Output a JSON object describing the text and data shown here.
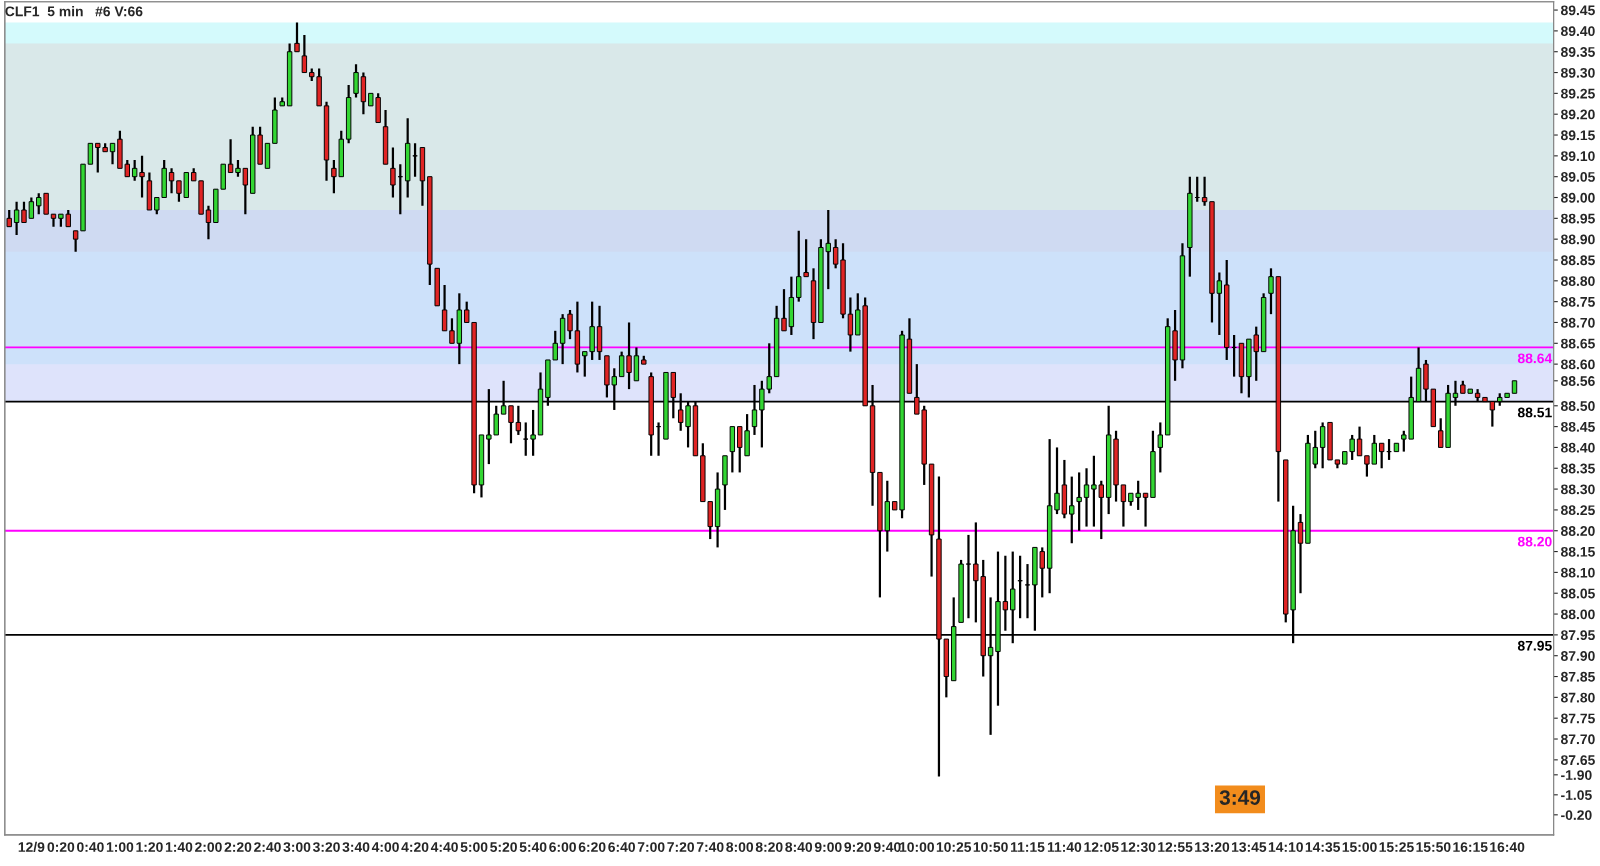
{
  "chart_data": {
    "type": "candlestick",
    "title": "CLF1  5 min   #6 V:66",
    "categories": [
      null,
      null,
      null,
      "12/9",
      null,
      null,
      null,
      "0:20",
      null,
      null,
      null,
      "0:40",
      null,
      null,
      null,
      "1:00",
      null,
      null,
      null,
      "1:20",
      null,
      null,
      null,
      "1:40",
      null,
      null,
      null,
      "2:00",
      null,
      null,
      null,
      "2:20",
      null,
      null,
      null,
      "2:40",
      null,
      null,
      null,
      "3:00",
      null,
      null,
      null,
      "3:20",
      null,
      null,
      null,
      "3:40",
      null,
      null,
      null,
      "4:00",
      null,
      null,
      null,
      "4:20",
      null,
      null,
      null,
      "4:40",
      null,
      null,
      null,
      "5:00",
      null,
      null,
      null,
      "5:20",
      null,
      null,
      null,
      "5:40",
      null,
      null,
      null,
      "6:00",
      null,
      null,
      null,
      "6:20",
      null,
      null,
      null,
      "6:40",
      null,
      null,
      null,
      "7:00",
      null,
      null,
      null,
      "7:20",
      null,
      null,
      null,
      "7:40",
      null,
      null,
      null,
      "8:00",
      null,
      null,
      null,
      "8:20",
      null,
      null,
      null,
      "8:40",
      null,
      null,
      null,
      "9:00",
      null,
      null,
      null,
      "9:20",
      null,
      null,
      null,
      "9:40",
      null,
      null,
      null,
      "10:00",
      null,
      null,
      null,
      null,
      "10:25",
      null,
      null,
      null,
      null,
      "10:50",
      null,
      null,
      null,
      null,
      "11:15",
      null,
      null,
      null,
      null,
      "11:40",
      null,
      null,
      null,
      null,
      "12:05",
      null,
      null,
      null,
      null,
      "12:30",
      null,
      null,
      null,
      null,
      "12:55",
      null,
      null,
      null,
      null,
      "13:20",
      null,
      null,
      null,
      null,
      "13:45",
      null,
      null,
      null,
      null,
      "14:10",
      null,
      null,
      null,
      null,
      "14:35",
      null,
      null,
      null,
      null,
      "15:00",
      null,
      null,
      null,
      null,
      "15:25",
      null,
      null,
      null,
      null,
      "15:50",
      null,
      null,
      null,
      null,
      "16:15",
      null,
      null,
      null,
      null,
      "16:40",
      null
    ],
    "ohlc": [
      [
        88.95,
        88.97,
        88.93,
        88.93
      ],
      [
        88.94,
        88.99,
        88.91,
        88.97
      ],
      [
        88.97,
        88.99,
        88.94,
        88.94
      ],
      [
        88.95,
        89.0,
        88.95,
        88.99
      ],
      [
        88.98,
        89.01,
        88.96,
        89.0
      ],
      [
        89.01,
        89.01,
        88.96,
        88.96
      ],
      [
        88.96,
        88.96,
        88.93,
        88.95
      ],
      [
        88.95,
        88.96,
        88.93,
        88.96
      ],
      [
        88.96,
        88.97,
        88.93,
        88.93
      ],
      [
        88.92,
        88.92,
        88.87,
        88.9
      ],
      [
        88.92,
        89.08,
        88.92,
        89.08
      ],
      [
        89.08,
        89.13,
        89.08,
        89.13
      ],
      [
        89.13,
        89.13,
        89.06,
        89.12
      ],
      [
        89.12,
        89.13,
        89.11,
        89.11
      ],
      [
        89.11,
        89.13,
        89.08,
        89.13
      ],
      [
        89.14,
        89.16,
        89.07,
        89.07
      ],
      [
        89.08,
        89.09,
        89.05,
        89.05
      ],
      [
        89.05,
        89.09,
        89.04,
        89.07
      ],
      [
        89.06,
        89.1,
        89.0,
        89.05
      ],
      [
        89.04,
        89.06,
        88.97,
        88.97
      ],
      [
        88.97,
        89.0,
        88.96,
        89.0
      ],
      [
        89.0,
        89.09,
        89.0,
        89.07
      ],
      [
        89.06,
        89.07,
        89.01,
        89.04
      ],
      [
        89.04,
        89.04,
        88.99,
        89.01
      ],
      [
        89.0,
        89.06,
        89.0,
        89.06
      ],
      [
        89.06,
        89.07,
        89.04,
        89.04
      ],
      [
        89.04,
        89.04,
        88.96,
        88.96
      ],
      [
        88.97,
        88.98,
        88.9,
        88.94
      ],
      [
        88.94,
        89.02,
        88.94,
        89.02
      ],
      [
        89.02,
        89.08,
        89.02,
        89.08
      ],
      [
        89.08,
        89.14,
        89.06,
        89.06
      ],
      [
        89.06,
        89.09,
        89.05,
        89.07
      ],
      [
        89.07,
        89.07,
        88.96,
        89.03
      ],
      [
        89.01,
        89.17,
        89.01,
        89.15
      ],
      [
        89.15,
        89.17,
        89.08,
        89.08
      ],
      [
        89.07,
        89.13,
        89.07,
        89.13
      ],
      [
        89.13,
        89.24,
        89.13,
        89.21
      ],
      [
        89.22,
        89.24,
        89.22,
        89.23
      ],
      [
        89.22,
        89.37,
        89.22,
        89.35
      ],
      [
        89.37,
        89.42,
        89.35,
        89.35
      ],
      [
        89.34,
        89.39,
        89.3,
        89.3
      ],
      [
        89.3,
        89.31,
        89.28,
        89.29
      ],
      [
        89.29,
        89.31,
        89.22,
        89.22
      ],
      [
        89.22,
        89.23,
        89.04,
        89.09
      ],
      [
        89.07,
        89.09,
        89.01,
        89.05
      ],
      [
        89.05,
        89.16,
        89.05,
        89.14
      ],
      [
        89.14,
        89.27,
        89.13,
        89.24
      ],
      [
        89.25,
        89.32,
        89.24,
        89.3
      ],
      [
        89.29,
        89.3,
        89.2,
        89.23
      ],
      [
        89.22,
        89.25,
        89.22,
        89.25
      ],
      [
        89.24,
        89.25,
        89.18,
        89.18
      ],
      [
        89.17,
        89.21,
        89.08,
        89.08
      ],
      [
        89.07,
        89.12,
        89.0,
        89.03
      ],
      [
        89.05,
        89.08,
        88.96,
        89.05
      ],
      [
        89.04,
        89.19,
        89.0,
        89.13
      ],
      [
        89.1,
        89.13,
        89.05,
        89.1
      ],
      [
        89.12,
        89.12,
        88.98,
        89.04
      ],
      [
        89.05,
        89.05,
        88.79,
        88.84
      ],
      [
        88.83,
        88.83,
        88.74,
        88.74
      ],
      [
        88.73,
        88.79,
        88.68,
        88.68
      ],
      [
        88.68,
        88.71,
        88.65,
        88.65
      ],
      [
        88.65,
        88.77,
        88.6,
        88.73
      ],
      [
        88.73,
        88.75,
        88.7,
        88.7
      ],
      [
        88.7,
        88.7,
        88.29,
        88.31
      ],
      [
        88.31,
        88.43,
        88.28,
        88.43
      ],
      [
        88.42,
        88.54,
        88.36,
        88.43
      ],
      [
        88.43,
        88.5,
        88.43,
        88.48
      ],
      [
        88.48,
        88.56,
        88.48,
        88.5
      ],
      [
        88.5,
        88.5,
        88.41,
        88.46
      ],
      [
        88.46,
        88.5,
        88.43,
        88.44
      ],
      [
        88.42,
        88.46,
        88.38,
        88.42
      ],
      [
        88.42,
        88.49,
        88.38,
        88.43
      ],
      [
        88.43,
        88.58,
        88.43,
        88.54
      ],
      [
        88.52,
        88.61,
        88.5,
        88.61
      ],
      [
        88.61,
        88.68,
        88.61,
        88.65
      ],
      [
        88.65,
        88.72,
        88.6,
        88.71
      ],
      [
        88.72,
        88.73,
        88.66,
        88.68
      ],
      [
        88.68,
        88.75,
        88.58,
        88.6
      ],
      [
        88.62,
        88.63,
        88.57,
        88.63
      ],
      [
        88.63,
        88.75,
        88.61,
        88.69
      ],
      [
        88.69,
        88.74,
        88.61,
        88.63
      ],
      [
        88.62,
        88.62,
        88.52,
        88.55
      ],
      [
        88.55,
        88.59,
        88.49,
        88.57
      ],
      [
        88.57,
        88.63,
        88.57,
        88.62
      ],
      [
        88.62,
        88.7,
        88.54,
        88.58
      ],
      [
        88.56,
        88.64,
        88.56,
        88.62
      ],
      [
        88.61,
        88.62,
        88.6,
        88.6
      ],
      [
        88.57,
        88.58,
        88.38,
        88.43
      ],
      [
        88.45,
        88.46,
        88.38,
        88.45
      ],
      [
        88.42,
        88.58,
        88.42,
        88.58
      ],
      [
        88.58,
        88.58,
        88.47,
        88.52
      ],
      [
        88.49,
        88.53,
        88.44,
        88.46
      ],
      [
        88.45,
        88.51,
        88.4,
        88.5
      ],
      [
        88.5,
        88.51,
        88.38,
        88.38
      ],
      [
        88.38,
        88.41,
        88.27,
        88.27
      ],
      [
        88.27,
        88.27,
        88.18,
        88.21
      ],
      [
        88.21,
        88.34,
        88.16,
        88.3
      ],
      [
        88.31,
        88.38,
        88.25,
        88.38
      ],
      [
        88.39,
        88.45,
        88.34,
        88.45
      ],
      [
        88.45,
        88.45,
        88.34,
        88.4
      ],
      [
        88.38,
        88.48,
        88.38,
        88.44
      ],
      [
        88.45,
        88.55,
        88.43,
        88.49
      ],
      [
        88.49,
        88.56,
        88.4,
        88.54
      ],
      [
        88.54,
        88.65,
        88.53,
        88.57
      ],
      [
        88.57,
        88.74,
        88.57,
        88.71
      ],
      [
        88.71,
        88.78,
        88.68,
        88.68
      ],
      [
        88.69,
        88.81,
        88.67,
        88.76
      ],
      [
        88.76,
        88.92,
        88.75,
        88.81
      ],
      [
        88.82,
        88.9,
        88.81,
        88.81
      ],
      [
        88.8,
        88.83,
        88.66,
        88.7
      ],
      [
        88.7,
        88.9,
        88.7,
        88.88
      ],
      [
        88.87,
        88.97,
        88.78,
        88.89
      ],
      [
        88.88,
        88.9,
        88.83,
        88.84
      ],
      [
        88.85,
        88.89,
        88.71,
        88.72
      ],
      [
        88.72,
        88.76,
        88.63,
        88.67
      ],
      [
        88.67,
        88.77,
        88.67,
        88.73
      ],
      [
        88.74,
        88.76,
        88.5,
        88.5
      ],
      [
        88.5,
        88.55,
        88.26,
        88.34
      ],
      [
        88.34,
        88.34,
        88.04,
        88.2
      ],
      [
        88.2,
        88.32,
        88.15,
        88.27
      ],
      [
        88.27,
        88.27,
        88.25,
        88.25
      ],
      [
        88.25,
        88.68,
        88.23,
        88.67
      ],
      [
        88.66,
        88.71,
        88.53,
        88.53
      ],
      [
        88.52,
        88.6,
        88.48,
        88.48
      ],
      [
        88.49,
        88.5,
        88.31,
        88.36
      ],
      [
        88.36,
        88.36,
        88.09,
        88.19
      ],
      [
        88.18,
        88.33,
        87.61,
        87.94
      ],
      [
        87.94,
        87.94,
        87.8,
        87.85
      ],
      [
        87.84,
        88.04,
        87.84,
        87.97
      ],
      [
        87.98,
        88.13,
        87.98,
        88.12
      ],
      [
        88.12,
        88.19,
        87.99,
        88.12
      ],
      [
        88.12,
        88.22,
        87.98,
        88.08
      ],
      [
        88.09,
        88.13,
        87.85,
        87.9
      ],
      [
        87.9,
        88.04,
        87.71,
        87.92
      ],
      [
        87.91,
        88.15,
        87.78,
        88.03
      ],
      [
        88.03,
        88.14,
        87.96,
        88.01
      ],
      [
        88.01,
        88.15,
        87.93,
        88.06
      ],
      [
        88.08,
        88.14,
        87.99,
        88.08
      ],
      [
        88.07,
        88.12,
        87.99,
        88.07
      ],
      [
        88.07,
        88.16,
        87.96,
        88.16
      ],
      [
        88.15,
        88.16,
        88.04,
        88.11
      ],
      [
        88.11,
        88.42,
        88.05,
        88.26
      ],
      [
        88.25,
        88.4,
        88.24,
        88.29
      ],
      [
        88.31,
        88.37,
        88.23,
        88.24
      ],
      [
        88.24,
        88.33,
        88.17,
        88.26
      ],
      [
        88.27,
        88.34,
        88.2,
        88.28
      ],
      [
        88.28,
        88.35,
        88.21,
        88.31
      ],
      [
        88.3,
        88.38,
        88.21,
        88.31
      ],
      [
        88.31,
        88.32,
        88.18,
        88.28
      ],
      [
        88.28,
        88.5,
        88.24,
        88.43
      ],
      [
        88.42,
        88.44,
        88.27,
        88.31
      ],
      [
        88.31,
        88.31,
        88.21,
        88.27
      ],
      [
        88.27,
        88.29,
        88.26,
        88.29
      ],
      [
        88.28,
        88.32,
        88.25,
        88.29
      ],
      [
        88.29,
        88.29,
        88.21,
        88.28
      ],
      [
        88.28,
        88.44,
        88.28,
        88.39
      ],
      [
        88.4,
        88.46,
        88.34,
        88.43
      ],
      [
        88.43,
        88.71,
        88.43,
        88.69
      ],
      [
        88.68,
        88.73,
        88.56,
        88.61
      ],
      [
        88.61,
        88.89,
        88.59,
        88.86
      ],
      [
        88.88,
        89.05,
        88.81,
        89.01
      ],
      [
        89.0,
        89.05,
        88.99,
        89.0
      ],
      [
        89.0,
        89.05,
        88.98,
        88.99
      ],
      [
        88.99,
        88.99,
        88.7,
        88.77
      ],
      [
        88.77,
        88.82,
        88.67,
        88.8
      ],
      [
        88.79,
        88.85,
        88.61,
        88.64
      ],
      [
        88.64,
        88.67,
        88.57,
        88.64
      ],
      [
        88.65,
        88.65,
        88.53,
        88.57
      ],
      [
        88.57,
        88.66,
        88.52,
        88.66
      ],
      [
        88.67,
        88.69,
        88.56,
        88.63
      ],
      [
        88.63,
        88.77,
        88.63,
        88.76
      ],
      [
        88.77,
        88.83,
        88.72,
        88.81
      ],
      [
        88.81,
        88.81,
        88.27,
        88.39
      ],
      [
        88.37,
        88.37,
        87.98,
        88.0
      ],
      [
        88.01,
        88.26,
        87.93,
        88.2
      ],
      [
        88.22,
        88.24,
        88.05,
        88.17
      ],
      [
        88.17,
        88.43,
        88.17,
        88.41
      ],
      [
        88.36,
        88.44,
        88.35,
        88.4
      ],
      [
        88.4,
        88.46,
        88.35,
        88.45
      ],
      [
        88.46,
        88.46,
        88.37,
        88.37
      ],
      [
        88.37,
        88.37,
        88.35,
        88.36
      ],
      [
        88.36,
        88.39,
        88.36,
        88.39
      ],
      [
        88.39,
        88.43,
        88.37,
        88.42
      ],
      [
        88.42,
        88.45,
        88.38,
        88.38
      ],
      [
        88.38,
        88.38,
        88.33,
        88.36
      ],
      [
        88.36,
        88.43,
        88.36,
        88.41
      ],
      [
        88.41,
        88.41,
        88.35,
        88.39
      ],
      [
        88.39,
        88.42,
        88.37,
        88.39
      ],
      [
        88.39,
        88.41,
        88.39,
        88.41
      ],
      [
        88.42,
        88.44,
        88.39,
        88.43
      ],
      [
        88.42,
        88.57,
        88.42,
        88.52
      ],
      [
        88.51,
        88.64,
        88.51,
        88.59
      ],
      [
        88.6,
        88.61,
        88.51,
        88.54
      ],
      [
        88.54,
        88.54,
        88.45,
        88.45
      ],
      [
        88.44,
        88.47,
        88.4,
        88.4
      ],
      [
        88.4,
        88.55,
        88.4,
        88.53
      ],
      [
        88.52,
        88.56,
        88.5,
        88.53
      ],
      [
        88.55,
        88.56,
        88.53,
        88.53
      ],
      [
        88.53,
        88.54,
        88.53,
        88.54
      ],
      [
        88.53,
        88.54,
        88.51,
        88.52
      ],
      [
        88.52,
        88.52,
        88.51,
        88.51
      ],
      [
        88.51,
        88.51,
        88.45,
        88.49
      ],
      [
        88.51,
        88.53,
        88.5,
        88.52
      ],
      [
        88.52,
        88.53,
        88.52,
        88.53
      ],
      [
        88.53,
        88.56,
        88.53,
        88.56
      ]
    ],
    "ylim": [
      87.47,
      89.47
    ],
    "yticks": [
      87.65,
      {
        "value": 87.7,
        "label": "87.70"
      },
      87.75,
      {
        "value": 87.8,
        "label": "87.80"
      },
      87.85,
      {
        "value": 87.9,
        "label": "87.90"
      },
      87.95,
      {
        "value": 88,
        "label": "88.00"
      },
      88.05,
      {
        "value": 88.1,
        "label": "88.10"
      },
      88.15,
      {
        "value": 88.2,
        "label": "88.20"
      },
      88.25,
      {
        "value": 88.3,
        "label": "88.30"
      },
      88.35,
      {
        "value": 88.4,
        "label": "88.40"
      },
      88.45,
      {
        "value": 88.5,
        "label": "88.50"
      },
      {
        "value": 88.56,
        "label": "88.56"
      },
      {
        "value": 88.6,
        "label": "88.60"
      },
      88.65,
      {
        "value": 88.7,
        "label": "88.70"
      },
      88.75,
      {
        "value": 88.8,
        "label": "88.80"
      },
      88.85,
      {
        "value": 88.9,
        "label": "88.90"
      },
      88.95,
      {
        "value": 89,
        "label": "89.00"
      },
      89.05,
      {
        "value": 89.1,
        "label": "89.10"
      },
      89.15,
      {
        "value": 89.2,
        "label": "89.20"
      },
      89.25,
      {
        "value": 89.3,
        "label": "89.30"
      },
      89.35,
      {
        "value": 89.4,
        "label": "89.40"
      },
      89.45
    ],
    "bands": [
      {
        "axis": "y",
        "from": 88.6,
        "to": 89.42,
        "color": "#b8f6fa"
      },
      {
        "axis": "y",
        "from": 88.87,
        "to": 89.37,
        "color": "#dcdcdc"
      },
      {
        "axis": "y",
        "from": 88.51,
        "to": 88.97,
        "color": "#c8d0f8"
      }
    ],
    "ref_lines": [
      {
        "axis": "y",
        "value": 88.64,
        "label": "88.64",
        "color": "#ff00ff"
      },
      {
        "axis": "y",
        "value": 88.51,
        "label": "88.51",
        "color": "#000000"
      },
      {
        "axis": "y",
        "value": 88.2,
        "label": "88.20",
        "color": "#ff00ff"
      },
      {
        "axis": "y",
        "value": 87.95,
        "label": "87.95",
        "color": "#000000"
      }
    ],
    "annotations": [
      "3:49"
    ],
    "y2lim": [
      0.65,
      -34.75
    ],
    "y2ticks": [
      {
        "value": -1.9,
        "label": "-1.90"
      },
      {
        "value": -1.05,
        "label": "-1.05"
      },
      {
        "value": -0.2,
        "label": "-0.20"
      }
    ],
    "grid": false,
    "legend": false
  }
}
